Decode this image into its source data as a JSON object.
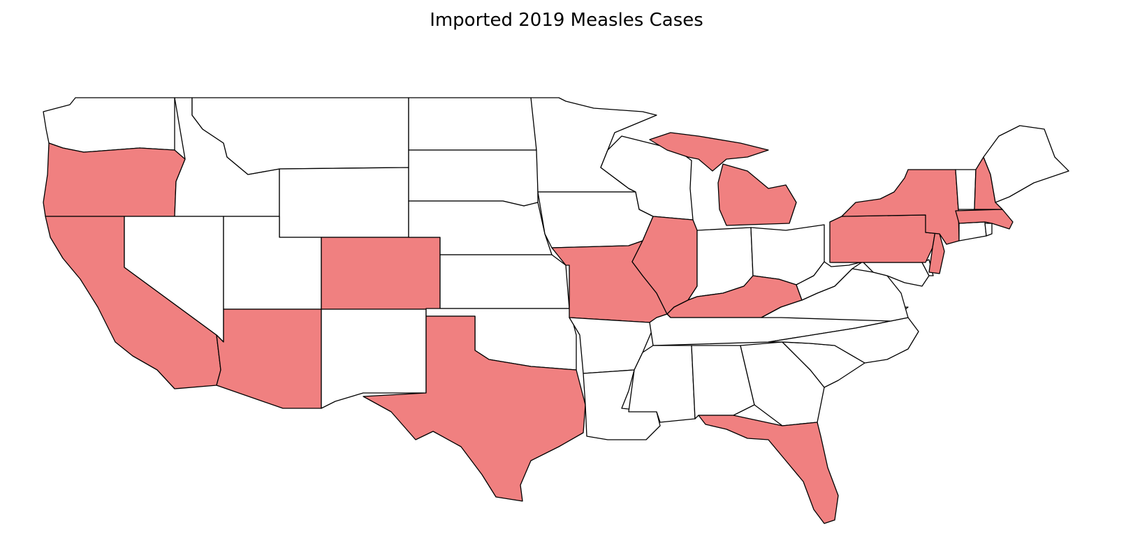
{
  "title": "Imported 2019 Measles Cases",
  "colors": {
    "highlighted": "#f08080",
    "not_highlighted": "#ffffff",
    "border": "#000000"
  },
  "states": [
    {
      "id": "WA",
      "name": "Washington",
      "imported": false
    },
    {
      "id": "OR",
      "name": "Oregon",
      "imported": true
    },
    {
      "id": "CA",
      "name": "California",
      "imported": true
    },
    {
      "id": "ID",
      "name": "Idaho",
      "imported": false
    },
    {
      "id": "NV",
      "name": "Nevada",
      "imported": false
    },
    {
      "id": "MT",
      "name": "Montana",
      "imported": false
    },
    {
      "id": "WY",
      "name": "Wyoming",
      "imported": false
    },
    {
      "id": "UT",
      "name": "Utah",
      "imported": false
    },
    {
      "id": "AZ",
      "name": "Arizona",
      "imported": true
    },
    {
      "id": "CO",
      "name": "Colorado",
      "imported": true
    },
    {
      "id": "NM",
      "name": "New Mexico",
      "imported": false
    },
    {
      "id": "ND",
      "name": "North Dakota",
      "imported": false
    },
    {
      "id": "SD",
      "name": "South Dakota",
      "imported": false
    },
    {
      "id": "NE",
      "name": "Nebraska",
      "imported": false
    },
    {
      "id": "KS",
      "name": "Kansas",
      "imported": false
    },
    {
      "id": "OK",
      "name": "Oklahoma",
      "imported": false
    },
    {
      "id": "TX",
      "name": "Texas",
      "imported": true
    },
    {
      "id": "MN",
      "name": "Minnesota",
      "imported": false
    },
    {
      "id": "IA",
      "name": "Iowa",
      "imported": false
    },
    {
      "id": "MO",
      "name": "Missouri",
      "imported": true
    },
    {
      "id": "AR",
      "name": "Arkansas",
      "imported": false
    },
    {
      "id": "LA",
      "name": "Louisiana",
      "imported": false
    },
    {
      "id": "WI",
      "name": "Wisconsin",
      "imported": false
    },
    {
      "id": "IL",
      "name": "Illinois",
      "imported": true
    },
    {
      "id": "MI",
      "name": "Michigan",
      "imported": true
    },
    {
      "id": "IN",
      "name": "Indiana",
      "imported": false
    },
    {
      "id": "OH",
      "name": "Ohio",
      "imported": false
    },
    {
      "id": "KY",
      "name": "Kentucky",
      "imported": true
    },
    {
      "id": "TN",
      "name": "Tennessee",
      "imported": false
    },
    {
      "id": "MS",
      "name": "Mississippi",
      "imported": false
    },
    {
      "id": "AL",
      "name": "Alabama",
      "imported": false
    },
    {
      "id": "GA",
      "name": "Georgia",
      "imported": false
    },
    {
      "id": "FL",
      "name": "Florida",
      "imported": true
    },
    {
      "id": "SC",
      "name": "South Carolina",
      "imported": false
    },
    {
      "id": "NC",
      "name": "North Carolina",
      "imported": false
    },
    {
      "id": "VA",
      "name": "Virginia",
      "imported": false
    },
    {
      "id": "WV",
      "name": "West Virginia",
      "imported": false
    },
    {
      "id": "MD",
      "name": "Maryland",
      "imported": false
    },
    {
      "id": "DE",
      "name": "Delaware",
      "imported": false
    },
    {
      "id": "PA",
      "name": "Pennsylvania",
      "imported": true
    },
    {
      "id": "NJ",
      "name": "New Jersey",
      "imported": true
    },
    {
      "id": "NY",
      "name": "New York",
      "imported": true
    },
    {
      "id": "CT",
      "name": "Connecticut",
      "imported": false
    },
    {
      "id": "RI",
      "name": "Rhode Island",
      "imported": false
    },
    {
      "id": "MA",
      "name": "Massachusetts",
      "imported": true
    },
    {
      "id": "VT",
      "name": "Vermont",
      "imported": false
    },
    {
      "id": "NH",
      "name": "New Hampshire",
      "imported": true
    },
    {
      "id": "ME",
      "name": "Maine",
      "imported": false
    }
  ]
}
